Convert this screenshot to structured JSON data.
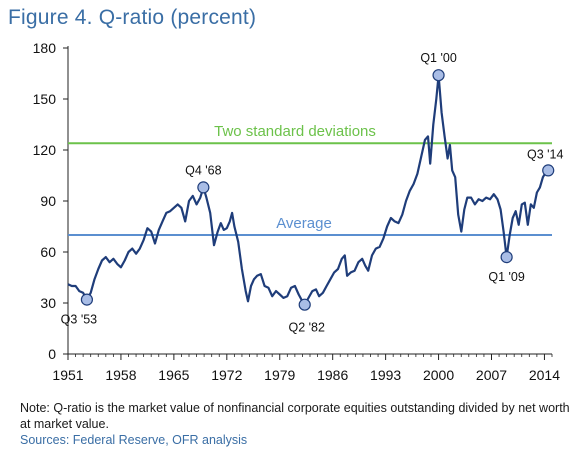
{
  "title": "Figure 4. Q-ratio (percent)",
  "note": "Note: Q-ratio is the market value of nonfinancial corporate equities outstanding divided by net worth at market value.",
  "source": "Sources: Federal Reserve, OFR analysis",
  "chart_data": {
    "type": "line",
    "title": "Figure 4. Q-ratio (percent)",
    "xlabel": "",
    "ylabel": "",
    "xlim": [
      1951,
      2015
    ],
    "ylim": [
      0,
      180
    ],
    "xticks": [
      1951,
      1958,
      1965,
      1972,
      1979,
      1986,
      1993,
      2000,
      2007,
      2014
    ],
    "yticks": [
      0,
      30,
      60,
      90,
      120,
      150,
      180
    ],
    "grid": false,
    "colors": {
      "line": "#1f3d7a",
      "two_sd": "#6cc24a",
      "average": "#5b8fd0",
      "marker": "#a9bde6"
    },
    "reference_lines": [
      {
        "label": "Two standard deviations",
        "value": 124
      },
      {
        "label": "Average",
        "value": 70
      }
    ],
    "annotations": [
      {
        "label": "Q3 '53",
        "x": 1953.5,
        "y": 32
      },
      {
        "label": "Q4 '68",
        "x": 1968.9,
        "y": 98
      },
      {
        "label": "Q2 '82",
        "x": 1982.3,
        "y": 29
      },
      {
        "label": "Q1 '00",
        "x": 2000.0,
        "y": 164
      },
      {
        "label": "Q1 '09",
        "x": 2009.0,
        "y": 57
      },
      {
        "label": "Q3 '14",
        "x": 2014.5,
        "y": 108
      }
    ],
    "series": [
      {
        "values": [
          [
            1951.0,
            41
          ],
          [
            1951.5,
            40
          ],
          [
            1952.0,
            40
          ],
          [
            1952.5,
            37
          ],
          [
            1953.0,
            36
          ],
          [
            1953.5,
            32
          ],
          [
            1954.0,
            36
          ],
          [
            1954.5,
            44
          ],
          [
            1955.0,
            50
          ],
          [
            1955.5,
            55
          ],
          [
            1956.0,
            57
          ],
          [
            1956.5,
            54
          ],
          [
            1957.0,
            56
          ],
          [
            1957.5,
            53
          ],
          [
            1958.0,
            51
          ],
          [
            1958.5,
            55
          ],
          [
            1959.0,
            60
          ],
          [
            1959.5,
            62
          ],
          [
            1960.0,
            59
          ],
          [
            1960.5,
            62
          ],
          [
            1961.0,
            67
          ],
          [
            1961.5,
            74
          ],
          [
            1962.0,
            72
          ],
          [
            1962.5,
            65
          ],
          [
            1963.0,
            73
          ],
          [
            1963.5,
            78
          ],
          [
            1964.0,
            83
          ],
          [
            1964.5,
            84
          ],
          [
            1965.0,
            86
          ],
          [
            1965.5,
            88
          ],
          [
            1966.0,
            86
          ],
          [
            1966.5,
            78
          ],
          [
            1967.0,
            90
          ],
          [
            1967.5,
            93
          ],
          [
            1968.0,
            88
          ],
          [
            1968.5,
            92
          ],
          [
            1968.9,
            98
          ],
          [
            1969.3,
            92
          ],
          [
            1969.8,
            83
          ],
          [
            1970.3,
            64
          ],
          [
            1970.8,
            72
          ],
          [
            1971.2,
            77
          ],
          [
            1971.6,
            73
          ],
          [
            1972.0,
            74
          ],
          [
            1972.4,
            78
          ],
          [
            1972.7,
            83
          ],
          [
            1973.0,
            75
          ],
          [
            1973.5,
            66
          ],
          [
            1974.0,
            50
          ],
          [
            1974.5,
            37
          ],
          [
            1974.8,
            31
          ],
          [
            1975.2,
            40
          ],
          [
            1975.6,
            44
          ],
          [
            1976.0,
            46
          ],
          [
            1976.5,
            47
          ],
          [
            1977.0,
            40
          ],
          [
            1977.5,
            39
          ],
          [
            1978.0,
            34
          ],
          [
            1978.5,
            37
          ],
          [
            1979.0,
            35
          ],
          [
            1979.5,
            33
          ],
          [
            1980.0,
            34
          ],
          [
            1980.5,
            39
          ],
          [
            1981.0,
            40
          ],
          [
            1981.5,
            35
          ],
          [
            1982.0,
            31
          ],
          [
            1982.3,
            29
          ],
          [
            1982.8,
            33
          ],
          [
            1983.3,
            37
          ],
          [
            1983.8,
            38
          ],
          [
            1984.2,
            34
          ],
          [
            1984.7,
            36
          ],
          [
            1985.2,
            40
          ],
          [
            1985.7,
            44
          ],
          [
            1986.2,
            48
          ],
          [
            1986.7,
            50
          ],
          [
            1987.2,
            56
          ],
          [
            1987.6,
            58
          ],
          [
            1987.9,
            46
          ],
          [
            1988.4,
            48
          ],
          [
            1988.9,
            49
          ],
          [
            1989.4,
            54
          ],
          [
            1989.9,
            56
          ],
          [
            1990.3,
            52
          ],
          [
            1990.7,
            49
          ],
          [
            1991.2,
            58
          ],
          [
            1991.7,
            62
          ],
          [
            1992.2,
            63
          ],
          [
            1992.7,
            68
          ],
          [
            1993.2,
            75
          ],
          [
            1993.7,
            80
          ],
          [
            1994.2,
            78
          ],
          [
            1994.7,
            77
          ],
          [
            1995.2,
            82
          ],
          [
            1995.7,
            90
          ],
          [
            1996.2,
            96
          ],
          [
            1996.7,
            100
          ],
          [
            1997.2,
            106
          ],
          [
            1997.7,
            116
          ],
          [
            1998.2,
            126
          ],
          [
            1998.6,
            128
          ],
          [
            1998.9,
            112
          ],
          [
            1999.3,
            135
          ],
          [
            1999.7,
            150
          ],
          [
            2000.0,
            164
          ],
          [
            2000.4,
            142
          ],
          [
            2000.8,
            128
          ],
          [
            2001.2,
            115
          ],
          [
            2001.5,
            123
          ],
          [
            2001.8,
            108
          ],
          [
            2002.2,
            104
          ],
          [
            2002.6,
            82
          ],
          [
            2003.0,
            72
          ],
          [
            2003.4,
            85
          ],
          [
            2003.8,
            92
          ],
          [
            2004.3,
            92
          ],
          [
            2004.8,
            88
          ],
          [
            2005.3,
            91
          ],
          [
            2005.8,
            90
          ],
          [
            2006.3,
            92
          ],
          [
            2006.8,
            91
          ],
          [
            2007.3,
            94
          ],
          [
            2007.8,
            91
          ],
          [
            2008.2,
            85
          ],
          [
            2008.6,
            72
          ],
          [
            2009.0,
            57
          ],
          [
            2009.4,
            70
          ],
          [
            2009.8,
            80
          ],
          [
            2010.2,
            84
          ],
          [
            2010.6,
            76
          ],
          [
            2011.0,
            88
          ],
          [
            2011.4,
            89
          ],
          [
            2011.8,
            76
          ],
          [
            2012.2,
            88
          ],
          [
            2012.6,
            86
          ],
          [
            2013.0,
            95
          ],
          [
            2013.4,
            98
          ],
          [
            2013.8,
            104
          ],
          [
            2014.2,
            107
          ],
          [
            2014.5,
            108
          ]
        ]
      }
    ]
  }
}
